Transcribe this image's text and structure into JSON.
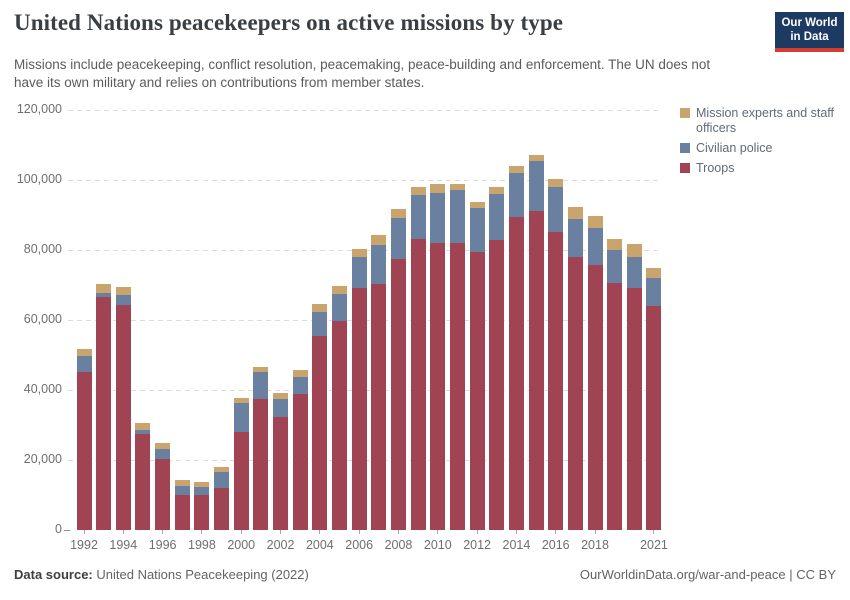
{
  "header": {
    "title": "United Nations peacekeepers on active missions by type",
    "subtitle": "Missions include peacekeeping, conflict resolution, peacemaking, peace-building and enforcement. The UN does not have its own military and relies on contributions from member states.",
    "logo": {
      "line1": "Our World",
      "line2": "in Data",
      "bg_color": "#1d3a63",
      "stripe_color": "#d53c32"
    }
  },
  "chart_data": {
    "type": "bar",
    "stacked": true,
    "title": "United Nations peacekeepers on active missions by type",
    "xlabel": "",
    "ylabel": "",
    "ylim": [
      0,
      120000
    ],
    "grid": "horizontal-dashed",
    "legend_position": "right",
    "x": [
      1992,
      1993,
      1994,
      1995,
      1996,
      1997,
      1998,
      1999,
      2000,
      2001,
      2002,
      2003,
      2004,
      2005,
      2006,
      2007,
      2008,
      2009,
      2010,
      2011,
      2012,
      2013,
      2014,
      2015,
      2016,
      2017,
      2018,
      2019,
      2020,
      2021
    ],
    "series": [
      {
        "name": "Troops",
        "color": "#A04352",
        "values": [
          45200,
          66500,
          64300,
          27400,
          20200,
          10000,
          10000,
          11900,
          27900,
          37500,
          32400,
          38900,
          55400,
          59800,
          69000,
          70200,
          77300,
          83000,
          81900,
          82100,
          79300,
          82900,
          89500,
          91100,
          85200,
          77900,
          75700,
          70500,
          69200,
          64000
        ]
      },
      {
        "name": "Civilian police",
        "color": "#6A80A0",
        "values": [
          4600,
          1100,
          2800,
          1200,
          2800,
          2600,
          2400,
          4800,
          8300,
          7500,
          4900,
          4900,
          7000,
          7600,
          8900,
          11200,
          11700,
          12700,
          14300,
          14900,
          12600,
          13100,
          12600,
          14400,
          12900,
          11000,
          10500,
          9500,
          8900,
          7900
        ]
      },
      {
        "name": "Mission experts and staff officers",
        "color": "#C9A46C",
        "values": [
          2000,
          2700,
          2400,
          2100,
          1800,
          1700,
          1400,
          1400,
          1400,
          1600,
          1900,
          1900,
          2200,
          2300,
          2500,
          2900,
          2600,
          2400,
          2600,
          1800,
          1900,
          2100,
          1900,
          1600,
          2200,
          3500,
          3500,
          3100,
          3600,
          3100
        ]
      }
    ],
    "legend": [
      {
        "label": "Mission experts and staff officers",
        "color": "#C9A46C"
      },
      {
        "label": "Civilian police",
        "color": "#6A80A0"
      },
      {
        "label": "Troops",
        "color": "#A04352"
      }
    ],
    "yticks": {
      "values": [
        0,
        20000,
        40000,
        60000,
        80000,
        100000,
        120000
      ],
      "labels": [
        "0",
        "20,000",
        "40,000",
        "60,000",
        "80,000",
        "100,000",
        "120,000"
      ]
    },
    "xticks": {
      "years": [
        1992,
        1994,
        1996,
        1998,
        2000,
        2002,
        2004,
        2006,
        2008,
        2010,
        2012,
        2014,
        2016,
        2018,
        2021
      ],
      "labels": [
        "1992",
        "1994",
        "1996",
        "1998",
        "2000",
        "2002",
        "2004",
        "2006",
        "2008",
        "2010",
        "2012",
        "2014",
        "2016",
        "2018",
        "2021"
      ]
    }
  },
  "footer": {
    "source_label": "Data source:",
    "source_value": "United Nations Peacekeeping (2022)",
    "link": "OurWorldinData.org/war-and-peace",
    "separator": "|",
    "license": "CC BY"
  }
}
